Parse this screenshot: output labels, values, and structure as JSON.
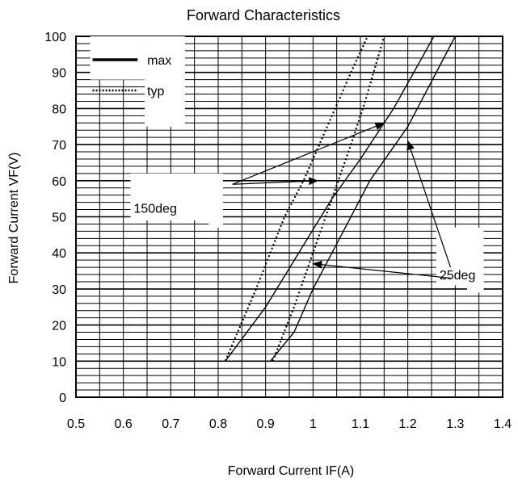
{
  "chart_data": {
    "type": "line",
    "title": "Forward Characteristics",
    "xlabel": "Forward Current IF(A)",
    "ylabel": "Forward Current VF(V)",
    "xlim": [
      0.5,
      1.4
    ],
    "ylim": [
      0,
      100
    ],
    "x_ticks": [
      "0.5",
      "0.6",
      "0.7",
      "0.8",
      "0.9",
      "1",
      "1.1",
      "1.2",
      "1.3",
      "1.4"
    ],
    "y_ticks": [
      "0",
      "10",
      "20",
      "30",
      "40",
      "50",
      "60",
      "70",
      "80",
      "90",
      "100"
    ],
    "grid": true,
    "legend": [
      {
        "label": "max",
        "style": "solid"
      },
      {
        "label": "typ",
        "style": "dotted"
      }
    ],
    "series": [
      {
        "style": "dotted",
        "points": [
          [
            0.815,
            10
          ],
          [
            0.88,
            30
          ],
          [
            0.94,
            50
          ],
          [
            0.98,
            60
          ],
          [
            1.03,
            75
          ],
          [
            1.08,
            90
          ],
          [
            1.115,
            100
          ]
        ]
      },
      {
        "style": "solid",
        "points": [
          [
            0.815,
            10
          ],
          [
            0.9,
            25
          ],
          [
            0.97,
            40
          ],
          [
            1.04,
            55
          ],
          [
            1.1,
            66
          ],
          [
            1.17,
            80
          ],
          [
            1.255,
            100
          ]
        ]
      },
      {
        "style": "dotted",
        "points": [
          [
            0.915,
            10
          ],
          [
            0.96,
            25
          ],
          [
            1.0,
            40
          ],
          [
            1.04,
            55
          ],
          [
            1.08,
            70
          ],
          [
            1.11,
            82
          ],
          [
            1.15,
            100
          ]
        ]
      },
      {
        "style": "solid",
        "points": [
          [
            0.91,
            10
          ],
          [
            0.96,
            18
          ],
          [
            1.0,
            30
          ],
          [
            1.06,
            45
          ],
          [
            1.12,
            60
          ],
          [
            1.2,
            75
          ],
          [
            1.3,
            100
          ]
        ]
      }
    ],
    "annotations": [
      {
        "text": "150deg",
        "label_pos": [
          0.83,
          59
        ],
        "arrows_to": [
          [
            1.15,
            76
          ],
          [
            1.01,
            60
          ]
        ]
      },
      {
        "text": "25deg",
        "label_pos": [
          1.29,
          34
        ],
        "arrows_to": [
          [
            1.2,
            71
          ],
          [
            1.0,
            37
          ]
        ]
      }
    ]
  }
}
